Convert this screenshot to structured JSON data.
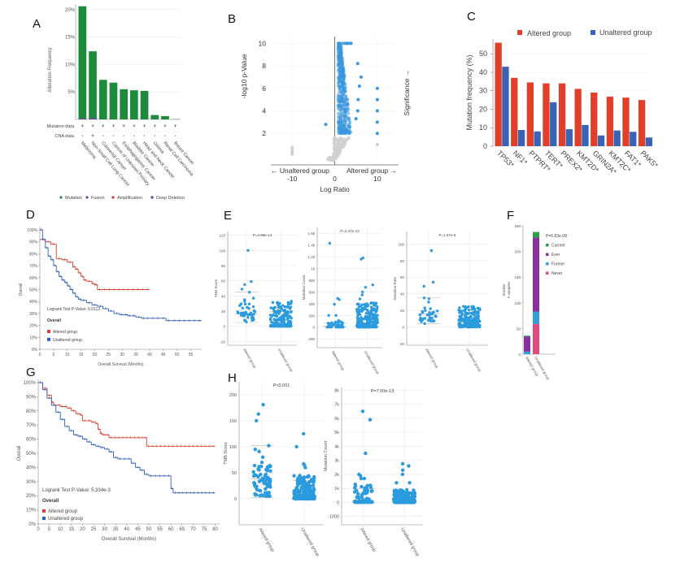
{
  "panels": {
    "A": {
      "label": "A"
    },
    "B": {
      "label": "B"
    },
    "C": {
      "label": "C"
    },
    "D": {
      "label": "D"
    },
    "E": {
      "label": "E"
    },
    "F": {
      "label": "F"
    },
    "G": {
      "label": "G"
    },
    "H": {
      "label": "H"
    }
  },
  "chart_data": [
    {
      "id": "A",
      "type": "bar",
      "title": "",
      "ylabel": "Alteration Frequency",
      "ylim": [
        0,
        21
      ],
      "yticks": [
        "5%",
        "10%",
        "15%",
        "20%"
      ],
      "yticks_values": [
        5,
        10,
        15,
        20
      ],
      "categories": [
        "Melanoma",
        "Non-Small Cell Lung Cancer",
        "Colorectal Cancer",
        "Cancer of Unknown Primary",
        "Esophagogastric Cancer",
        "Bladder Cancer",
        "Head and Neck Cancer",
        "Glioma",
        "Renal Cell Carcinoma",
        "Breast Cancer"
      ],
      "values": [
        20.6,
        12.4,
        7.2,
        6.7,
        5.5,
        5.3,
        5.2,
        0.8,
        0.6,
        0.05
      ],
      "bar_color": "#1e8a3c",
      "row_labels": [
        "Mutation data",
        "CNA data"
      ],
      "mutation_data": [
        "+",
        "+",
        "+",
        "+",
        "+",
        "+",
        "+",
        "+",
        "+",
        "+"
      ],
      "cna_data": [
        "-",
        "+",
        "-",
        "-",
        "-",
        "-",
        "-",
        "-",
        "-",
        "-"
      ],
      "legend": [
        {
          "label": "Mutation",
          "color": "#1e8a3c"
        },
        {
          "label": "Fusion",
          "color": "#7a3d9a"
        },
        {
          "label": "Amplification",
          "color": "#d03a2c"
        },
        {
          "label": "Deep Deletion",
          "color": "#2c4fa0"
        }
      ]
    },
    {
      "id": "B",
      "type": "scatter",
      "xlabel": "Log Ratio",
      "ylabel": "-log10 p-Value",
      "right_label": "Significance →",
      "left_annotation": "← Unaltered group",
      "right_annotation": "Altered group →",
      "xticks": [
        "-10",
        "0",
        "10"
      ],
      "xticks_values": [
        -10,
        0,
        10
      ],
      "yticks": [
        "2",
        "4",
        "6",
        "8",
        "10"
      ],
      "yticks_values": [
        2,
        4,
        6,
        8,
        10
      ],
      "xlim": [
        -15,
        15
      ],
      "ylim": [
        -0.8,
        10.6
      ],
      "significance_threshold": 2,
      "colors": {
        "significant": "#3a97dc",
        "not_significant": "#cfcfcf"
      },
      "outliers": [
        {
          "x": -2.1,
          "y": 2.8,
          "sig": true
        },
        {
          "x": 10,
          "y": 6.0,
          "sig": true
        },
        {
          "x": 10,
          "y": 5.0,
          "sig": true
        },
        {
          "x": 10,
          "y": 4.0,
          "sig": true
        },
        {
          "x": 10,
          "y": 3.0,
          "sig": true
        },
        {
          "x": 10,
          "y": 2.0,
          "sig": true
        },
        {
          "x": 10,
          "y": 1.0,
          "sig": false
        },
        {
          "x": 5.4,
          "y": 8.2,
          "sig": true
        },
        {
          "x": 6.2,
          "y": 7.0,
          "sig": true
        },
        {
          "x": 5.8,
          "y": 6.2,
          "sig": true
        },
        {
          "x": 5.5,
          "y": 5.0,
          "sig": true
        },
        {
          "x": 5.4,
          "y": 4.0,
          "sig": true
        },
        {
          "x": 5.0,
          "y": 3.3,
          "sig": true
        }
      ]
    },
    {
      "id": "C",
      "type": "bar",
      "ylabel": "Mutation frequency (%)",
      "ylim": [
        0,
        58
      ],
      "yticks": [
        "0",
        "10",
        "20",
        "30",
        "40",
        "50"
      ],
      "yticks_values": [
        0,
        10,
        20,
        30,
        40,
        50
      ],
      "categories": [
        "TP53*",
        "NF1*",
        "PTPRT*",
        "TERT*",
        "PREX2*",
        "KMT2D*",
        "GRIN2A*",
        "KMT2C*",
        "FAT1*",
        "PAK5*"
      ],
      "series": [
        {
          "name": "Altered group",
          "color": "#e0402a",
          "values": [
            56,
            37,
            34.5,
            34,
            34,
            31,
            29,
            26.8,
            26.3,
            25
          ]
        },
        {
          "name": "Unaltered group",
          "color": "#3a63b8",
          "values": [
            43,
            8.8,
            8,
            23.8,
            9.2,
            11.5,
            5.8,
            8.5,
            7.8,
            4.7
          ]
        }
      ]
    },
    {
      "id": "D",
      "type": "line",
      "xlabel": "Overall Survival (Months)",
      "ylabel": "Overall",
      "annotation": "Logrank Test P-Value: 0.0112",
      "legend_title": "Overall",
      "xlim": [
        0,
        59
      ],
      "xticks": [
        "0",
        "5",
        "10",
        "15",
        "20",
        "25",
        "30",
        "35",
        "40",
        "45",
        "50",
        "55"
      ],
      "xticks_values": [
        0,
        5,
        10,
        15,
        20,
        25,
        30,
        35,
        40,
        45,
        50,
        55
      ],
      "ylim": [
        0,
        100
      ],
      "yticks": [
        "0%",
        "10%",
        "20%",
        "30%",
        "40%",
        "50%",
        "60%",
        "70%",
        "80%",
        "90%",
        "100%"
      ],
      "yticks_values": [
        0,
        10,
        20,
        30,
        40,
        50,
        60,
        70,
        80,
        90,
        100
      ],
      "series": [
        {
          "name": "Altered group",
          "color": "#d9402f",
          "x": [
            0,
            2,
            4,
            6,
            8,
            10,
            12,
            13,
            14,
            15,
            16,
            17,
            19,
            20,
            21,
            40
          ],
          "y": [
            92,
            90,
            88,
            76,
            75,
            73,
            69,
            67,
            64,
            61,
            58,
            57,
            55,
            54,
            50,
            50
          ]
        },
        {
          "name": "Unaltered group",
          "color": "#2f5fb3",
          "x": [
            0,
            1,
            2,
            3,
            4,
            5,
            6,
            7,
            8,
            9,
            10,
            11,
            12,
            13,
            14,
            15,
            17,
            19,
            21,
            23,
            25,
            27,
            29,
            32,
            35,
            37,
            40,
            44,
            46,
            50,
            59
          ],
          "y": [
            100,
            92,
            85,
            78,
            75,
            70,
            65,
            61,
            58,
            56,
            53,
            50,
            47,
            44,
            42,
            41,
            39,
            37,
            36,
            34,
            32,
            30,
            29,
            28,
            27,
            26,
            26,
            26,
            24,
            24,
            24
          ]
        }
      ]
    },
    {
      "id": "E1",
      "type": "scatter",
      "ylabel": "TMB Score",
      "pvalue": "P=4.98e-14",
      "categories": [
        "Altered group",
        "Unaltered group"
      ],
      "ylim": [
        -25,
        125
      ],
      "yticks": [
        "-20",
        "0",
        "20",
        "40",
        "60",
        "80",
        "100",
        "120"
      ],
      "yticks_values": [
        -20,
        0,
        20,
        40,
        60,
        80,
        100,
        120
      ],
      "altered_outliers": [
        100,
        59,
        55,
        49,
        45,
        37,
        35,
        33
      ],
      "unaltered_max": 36
    },
    {
      "id": "E2",
      "type": "scatter",
      "ylabel": "Mutation Count",
      "pvalue": "P=2.47e-13",
      "categories": [
        "Altered group",
        "Unaltered group"
      ],
      "ylim": [
        -350,
        1700
      ],
      "yticks": [
        "-200",
        "0",
        "200",
        "400",
        "600",
        "800",
        "1k",
        "1.2k",
        "1.4k",
        "1.6k"
      ],
      "yticks_values": [
        -200,
        0,
        200,
        400,
        600,
        800,
        1000,
        1200,
        1400,
        1600
      ],
      "altered_outliers": [
        1430,
        490,
        470,
        390,
        200,
        200
      ],
      "unaltered_outliers": [
        1180,
        1160,
        720,
        680,
        600,
        550,
        480
      ]
    },
    {
      "id": "E3",
      "type": "scatter",
      "ylabel": "Mutation Rate",
      "pvalue": "P=1.57e-9",
      "categories": [
        "Altered group",
        "Unaltered group"
      ],
      "ylim": [
        -22,
        115
      ],
      "yticks": [
        "-20",
        "0",
        "20",
        "40",
        "60",
        "80",
        "100"
      ],
      "yticks_values": [
        -20,
        0,
        20,
        40,
        60,
        80,
        100
      ],
      "altered_outliers": [
        92,
        54,
        49,
        35,
        34,
        30
      ],
      "unaltered_max": 38
    },
    {
      "id": "F",
      "type": "bar",
      "ylabel": "Smoker\n# samples",
      "pvalue": "P=6.83e-08",
      "categories": [
        "Altered group",
        "Unaltered group"
      ],
      "ylim": [
        0,
        250
      ],
      "yticks": [
        "0",
        "50",
        "100",
        "150",
        "200",
        "250"
      ],
      "yticks_values": [
        0,
        50,
        100,
        150,
        200,
        250
      ],
      "series": [
        {
          "name": "Never",
          "color": "#e24a7c",
          "values": [
            0,
            59
          ]
        },
        {
          "name": "Former",
          "color": "#2fa0d8",
          "values": [
            5,
            24
          ]
        },
        {
          "name": "Ever",
          "color": "#8a2f9c",
          "values": [
            29,
            144
          ]
        },
        {
          "name": "Current",
          "color": "#2e9e46",
          "values": [
            2,
            11
          ]
        }
      ],
      "legend_order": [
        "Current",
        "Ever",
        "Former",
        "Never"
      ]
    },
    {
      "id": "G",
      "type": "line",
      "xlabel": "Overall Survival (Months)",
      "ylabel": "Overall",
      "annotation": "Logrank Test P-Value: 5.334e-3",
      "legend_title": "Overall",
      "xlim": [
        0,
        82
      ],
      "xticks": [
        "0",
        "5",
        "10",
        "15",
        "20",
        "25",
        "30",
        "35",
        "40",
        "45",
        "50",
        "55",
        "60",
        "65",
        "70",
        "75",
        "80"
      ],
      "xticks_values": [
        0,
        5,
        10,
        15,
        20,
        25,
        30,
        35,
        40,
        45,
        50,
        55,
        60,
        65,
        70,
        75,
        80
      ],
      "ylim": [
        0,
        100
      ],
      "yticks": [
        "0%",
        "10%",
        "20%",
        "30%",
        "40%",
        "50%",
        "60%",
        "70%",
        "80%",
        "90%",
        "100%"
      ],
      "yticks_values": [
        0,
        10,
        20,
        30,
        40,
        50,
        60,
        70,
        80,
        90,
        100
      ],
      "series": [
        {
          "name": "Altered group",
          "color": "#d9402f",
          "x": [
            0,
            2,
            4,
            6,
            7,
            10,
            13,
            15,
            17,
            19,
            20,
            24,
            26,
            27,
            28,
            29,
            32,
            48,
            49,
            80
          ],
          "y": [
            100,
            96,
            91,
            86,
            84,
            83,
            82,
            80,
            78,
            77,
            73,
            72,
            71,
            67,
            64,
            63,
            61,
            61,
            55,
            55
          ]
        },
        {
          "name": "Unaltered group",
          "color": "#2f5fb3",
          "x": [
            0,
            2,
            4,
            6,
            8,
            10,
            12,
            14,
            16,
            18,
            20,
            22,
            24,
            26,
            28,
            30,
            32,
            34,
            36,
            40,
            42,
            44,
            46,
            48,
            50,
            54,
            58,
            60,
            61,
            80
          ],
          "y": [
            100,
            95,
            89,
            84,
            79,
            74,
            69,
            66,
            63,
            62,
            60,
            58,
            56,
            55,
            54,
            53,
            51,
            47,
            46,
            46,
            43,
            40,
            38,
            35,
            34,
            34,
            34,
            25,
            22,
            22
          ]
        }
      ]
    },
    {
      "id": "H1",
      "type": "scatter",
      "ylabel": "TMB Score",
      "pvalue": "P<0.001",
      "categories": [
        "Altered group",
        "Unaltered group"
      ],
      "ylim": [
        -50,
        225
      ],
      "yticks": [
        "0",
        "50",
        "100",
        "150",
        "200"
      ],
      "yticks_values": [
        0,
        50,
        100,
        150,
        200
      ],
      "altered_outliers": [
        181,
        163,
        150,
        102,
        95,
        91,
        80,
        70
      ],
      "unaltered_outliers": [
        125,
        100,
        67,
        65,
        60
      ]
    },
    {
      "id": "H2",
      "type": "scatter",
      "ylabel": "Mutation Count",
      "pvalue": "P=7.00e-13",
      "categories": [
        "Altered group",
        "Unaltered group"
      ],
      "ylim": [
        -1600,
        8200
      ],
      "yticks": [
        "-1000",
        "0",
        "1k",
        "2k",
        "3k",
        "4k",
        "5k",
        "6k",
        "7k",
        "8k"
      ],
      "yticks_values": [
        -1000,
        0,
        1000,
        2000,
        3000,
        4000,
        5000,
        6000,
        7000,
        8000
      ],
      "altered_outliers": [
        6500,
        5900,
        3500,
        2000,
        1900,
        1700,
        1700
      ],
      "unaltered_outliers": [
        2750,
        2600,
        2300,
        2000,
        1400,
        1400
      ]
    }
  ]
}
